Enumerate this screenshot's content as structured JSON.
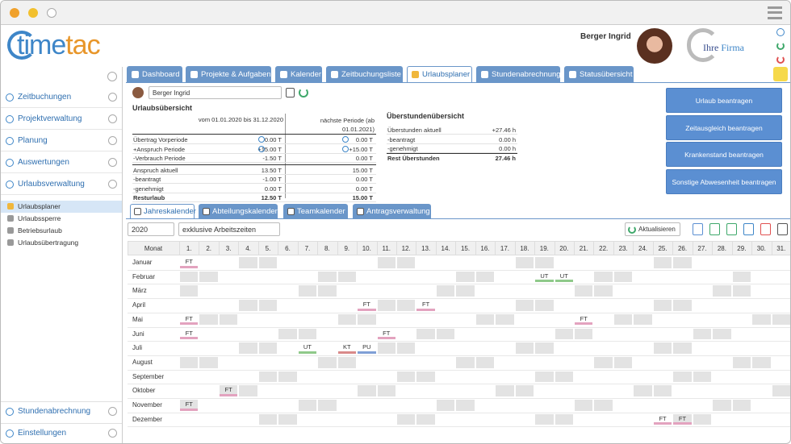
{
  "header": {
    "logo_time": "time",
    "logo_tac": "tac",
    "user": "Berger Ingrid",
    "company_a": "Ihre",
    "company_b": "Firma"
  },
  "tabs": [
    {
      "label": "Dashboard",
      "active": false
    },
    {
      "label": "Projekte & Aufgaben",
      "active": false
    },
    {
      "label": "Kalender",
      "active": false
    },
    {
      "label": "Zeitbuchungsliste",
      "active": false
    },
    {
      "label": "Urlaubsplaner",
      "active": true
    },
    {
      "label": "Stundenabrechnung",
      "active": false
    },
    {
      "label": "Statusübersicht",
      "active": false
    }
  ],
  "sidebar": {
    "items": [
      "Zeitbuchungen",
      "Projektverwaltung",
      "Planung",
      "Auswertungen",
      "Urlaubsverwaltung"
    ],
    "subitems": [
      {
        "label": "Urlaubsplaner",
        "active": true
      },
      {
        "label": "Urlaubssperre",
        "active": false
      },
      {
        "label": "Betriebsurlaub",
        "active": false
      },
      {
        "label": "Urlaubsübertragung",
        "active": false
      }
    ],
    "bottom": [
      "Stundenabrechnung",
      "Einstellungen"
    ]
  },
  "user_select": "Berger Ingrid",
  "vacation": {
    "title": "Urlaubsübersicht",
    "period": "vom 01.01.2020 bis 31.12.2020",
    "next_period": "nächste Periode (ab 01.01.2021)",
    "rows": [
      [
        "Übertrag Vorperiode",
        "0.00 T",
        "0.00 T"
      ],
      [
        "+Anspruch Periode",
        "+15.00 T",
        "+15.00 T"
      ],
      [
        "-Verbrauch Periode",
        "-1.50 T",
        "0.00 T"
      ],
      [
        "Anspruch aktuell",
        "13.50 T",
        "15.00 T"
      ],
      [
        "-beantragt",
        "-1.00 T",
        "0.00 T"
      ],
      [
        "-genehmigt",
        "0.00 T",
        "0.00 T"
      ],
      [
        "Resturlaub",
        "12.50 T",
        "15.00 T"
      ]
    ]
  },
  "overtime": {
    "title": "Überstundenübersicht",
    "rows": [
      [
        "Überstunden aktuell",
        "+27.46 h"
      ],
      [
        "-beantragt",
        "0.00 h"
      ],
      [
        "-genehmigt",
        "0.00 h"
      ],
      [
        "Rest Überstunden",
        "27.46 h"
      ]
    ]
  },
  "buttons": [
    "Urlaub beantragen",
    "Zeitausgleich beantragen",
    "Krankenstand beantragen",
    "Sonstige Abwesenheit beantragen"
  ],
  "subtabs": [
    {
      "label": "Jahreskalender",
      "active": true
    },
    {
      "label": "Abteilungskalender",
      "active": false
    },
    {
      "label": "Teamkalender",
      "active": false
    },
    {
      "label": "Antragsverwaltung",
      "active": false
    }
  ],
  "toolbar": {
    "year": "2020",
    "mode": "exklusive Arbeitszeiten",
    "refresh": "Aktualisieren"
  },
  "calendar": {
    "month_header": "Monat",
    "days": [
      "1.",
      "2.",
      "3.",
      "4.",
      "5.",
      "6.",
      "7.",
      "8.",
      "9.",
      "10.",
      "11.",
      "12.",
      "13.",
      "14.",
      "15.",
      "16.",
      "17.",
      "18.",
      "19.",
      "20.",
      "21.",
      "22.",
      "23.",
      "24.",
      "25.",
      "26.",
      "27.",
      "28.",
      "29.",
      "30.",
      "31."
    ],
    "months": [
      {
        "name": "Januar",
        "entries": [
          {
            "day": 1,
            "code": "FT",
            "color": "#e3a3bf"
          }
        ]
      },
      {
        "name": "Februar",
        "entries": [
          {
            "day": 19,
            "code": "UT",
            "color": "#8fc98a"
          },
          {
            "day": 20,
            "code": "UT",
            "color": "#8fc98a"
          }
        ]
      },
      {
        "name": "März",
        "entries": []
      },
      {
        "name": "April",
        "entries": [
          {
            "day": 10,
            "code": "FT",
            "color": "#e3a3bf"
          },
          {
            "day": 13,
            "code": "FT",
            "color": "#e3a3bf"
          }
        ]
      },
      {
        "name": "Mai",
        "entries": [
          {
            "day": 1,
            "code": "FT",
            "color": "#e3a3bf"
          },
          {
            "day": 21,
            "code": "FT",
            "color": "#e3a3bf"
          }
        ]
      },
      {
        "name": "Juni",
        "entries": [
          {
            "day": 1,
            "code": "FT",
            "color": "#e3a3bf"
          },
          {
            "day": 11,
            "code": "FT",
            "color": "#e3a3bf"
          }
        ]
      },
      {
        "name": "Juli",
        "entries": [
          {
            "day": 7,
            "code": "UT",
            "color": "#8fc98a"
          },
          {
            "day": 9,
            "code": "KT",
            "color": "#d98a8a"
          },
          {
            "day": 10,
            "code": "PU",
            "color": "#7f9fd6"
          }
        ]
      },
      {
        "name": "August",
        "entries": []
      },
      {
        "name": "September",
        "entries": []
      },
      {
        "name": "Oktober",
        "entries": [
          {
            "day": 3,
            "code": "FT",
            "color": "#e3a3bf"
          }
        ]
      },
      {
        "name": "November",
        "entries": [
          {
            "day": 1,
            "code": "FT",
            "color": "#e3a3bf"
          }
        ]
      },
      {
        "name": "Dezember",
        "entries": [
          {
            "day": 25,
            "code": "FT",
            "color": "#e3a3bf"
          },
          {
            "day": 26,
            "code": "FT",
            "color": "#e3a3bf"
          }
        ]
      }
    ]
  }
}
